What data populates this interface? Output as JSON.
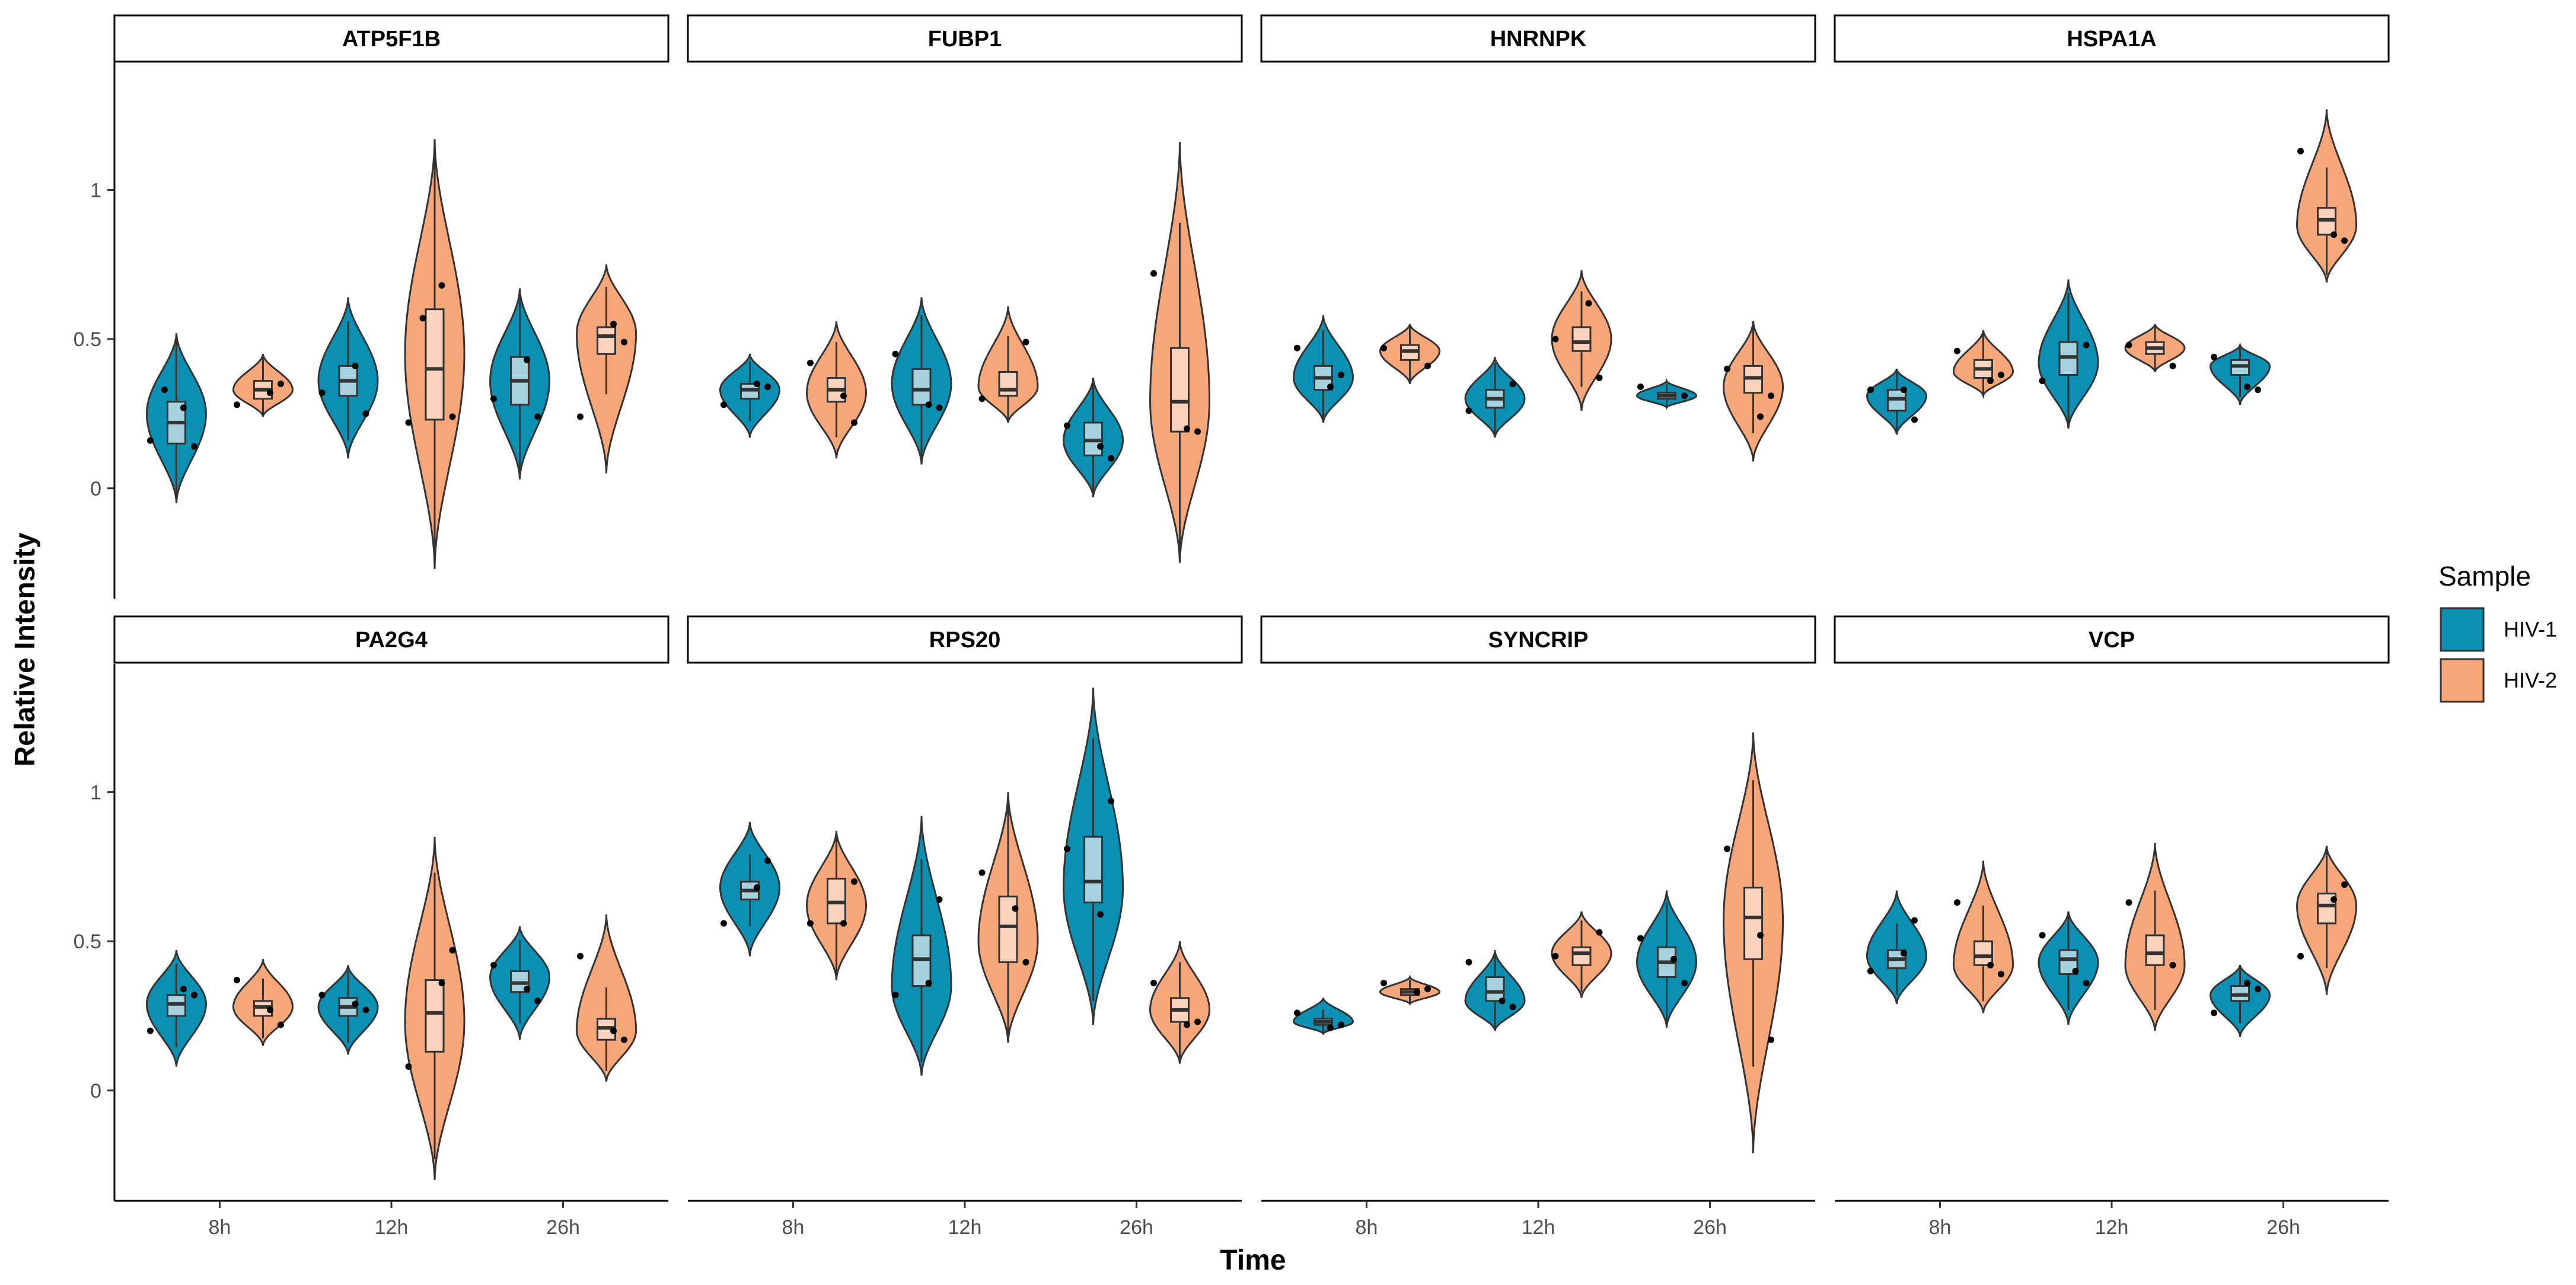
{
  "chart_data": {
    "type": "violin",
    "xlabel": "Time",
    "ylabel": "Relative Intensity",
    "x_categories": [
      "8h",
      "12h",
      "26h"
    ],
    "y_ticks": [
      0,
      0.5,
      1
    ],
    "y_tick_labels": [
      "0",
      "0.5",
      "1"
    ],
    "ylim": [
      -0.37,
      1.43
    ],
    "facet_layout": {
      "rows": 2,
      "cols": 4
    },
    "legend": {
      "title": "Sample",
      "position": "right",
      "entries": [
        {
          "name": "HIV-1",
          "fill": "#0b8fb2",
          "box_fill": "#a6d2df"
        },
        {
          "name": "HIV-2",
          "fill": "#f7a679",
          "box_fill": "#fbd3bc"
        }
      ]
    },
    "panels": [
      {
        "name": "ATP5F1B",
        "groups": [
          {
            "time": "8h",
            "sample": "HIV-1",
            "min": -0.05,
            "max": 0.52,
            "mode": 0.25,
            "q1": 0.15,
            "median": 0.22,
            "q3": 0.29,
            "points": [
              0.16,
              0.14,
              0.27,
              0.33
            ]
          },
          {
            "time": "8h",
            "sample": "HIV-2",
            "min": 0.24,
            "max": 0.45,
            "mode": 0.33,
            "q1": 0.3,
            "median": 0.33,
            "q3": 0.36,
            "points": [
              0.28,
              0.35,
              0.32
            ]
          },
          {
            "time": "12h",
            "sample": "HIV-1",
            "min": 0.1,
            "max": 0.64,
            "mode": 0.36,
            "q1": 0.31,
            "median": 0.36,
            "q3": 0.41,
            "points": [
              0.32,
              0.25,
              0.41
            ]
          },
          {
            "time": "12h",
            "sample": "HIV-2",
            "min": -0.27,
            "max": 1.17,
            "mode": 0.45,
            "q1": 0.23,
            "median": 0.4,
            "q3": 0.6,
            "points": [
              0.22,
              0.24,
              0.68,
              0.57
            ]
          },
          {
            "time": "26h",
            "sample": "HIV-1",
            "min": 0.03,
            "max": 0.67,
            "mode": 0.36,
            "q1": 0.28,
            "median": 0.36,
            "q3": 0.44,
            "points": [
              0.3,
              0.24,
              0.43
            ]
          },
          {
            "time": "26h",
            "sample": "HIV-2",
            "min": 0.05,
            "max": 0.75,
            "mode": 0.52,
            "q1": 0.45,
            "median": 0.51,
            "q3": 0.54,
            "points": [
              0.24,
              0.49,
              0.55
            ]
          }
        ]
      },
      {
        "name": "FUBP1",
        "groups": [
          {
            "time": "8h",
            "sample": "HIV-1",
            "min": 0.17,
            "max": 0.45,
            "mode": 0.33,
            "q1": 0.3,
            "median": 0.33,
            "q3": 0.35,
            "points": [
              0.28,
              0.34,
              0.35
            ]
          },
          {
            "time": "8h",
            "sample": "HIV-2",
            "min": 0.1,
            "max": 0.56,
            "mode": 0.32,
            "q1": 0.29,
            "median": 0.33,
            "q3": 0.37,
            "points": [
              0.42,
              0.22,
              0.31
            ]
          },
          {
            "time": "12h",
            "sample": "HIV-1",
            "min": 0.08,
            "max": 0.64,
            "mode": 0.35,
            "q1": 0.28,
            "median": 0.33,
            "q3": 0.4,
            "points": [
              0.45,
              0.27,
              0.28
            ]
          },
          {
            "time": "12h",
            "sample": "HIV-2",
            "min": 0.22,
            "max": 0.61,
            "mode": 0.34,
            "q1": 0.31,
            "median": 0.33,
            "q3": 0.39,
            "points": [
              0.3,
              0.49
            ]
          },
          {
            "time": "26h",
            "sample": "HIV-1",
            "min": -0.03,
            "max": 0.37,
            "mode": 0.16,
            "q1": 0.11,
            "median": 0.16,
            "q3": 0.22,
            "points": [
              0.21,
              0.1,
              0.14
            ]
          },
          {
            "time": "26h",
            "sample": "HIV-2",
            "min": -0.25,
            "max": 1.16,
            "mode": 0.29,
            "q1": 0.19,
            "median": 0.29,
            "q3": 0.47,
            "points": [
              0.72,
              0.19,
              0.2
            ]
          }
        ]
      },
      {
        "name": "HNRNPK",
        "groups": [
          {
            "time": "8h",
            "sample": "HIV-1",
            "min": 0.22,
            "max": 0.58,
            "mode": 0.37,
            "q1": 0.33,
            "median": 0.37,
            "q3": 0.41,
            "points": [
              0.47,
              0.38,
              0.34
            ]
          },
          {
            "time": "8h",
            "sample": "HIV-2",
            "min": 0.35,
            "max": 0.55,
            "mode": 0.46,
            "q1": 0.43,
            "median": 0.46,
            "q3": 0.48,
            "points": [
              0.47,
              0.41
            ]
          },
          {
            "time": "12h",
            "sample": "HIV-1",
            "min": 0.17,
            "max": 0.44,
            "mode": 0.3,
            "q1": 0.27,
            "median": 0.3,
            "q3": 0.33,
            "points": [
              0.26,
              0.35
            ]
          },
          {
            "time": "12h",
            "sample": "HIV-2",
            "min": 0.26,
            "max": 0.73,
            "mode": 0.5,
            "q1": 0.46,
            "median": 0.49,
            "q3": 0.54,
            "points": [
              0.5,
              0.37,
              0.62
            ]
          },
          {
            "time": "26h",
            "sample": "HIV-1",
            "min": 0.27,
            "max": 0.36,
            "mode": 0.31,
            "q1": 0.3,
            "median": 0.31,
            "q3": 0.32,
            "points": [
              0.34,
              0.31
            ]
          },
          {
            "time": "26h",
            "sample": "HIV-2",
            "min": 0.09,
            "max": 0.56,
            "mode": 0.34,
            "q1": 0.32,
            "median": 0.37,
            "q3": 0.41,
            "points": [
              0.4,
              0.31,
              0.24
            ]
          }
        ]
      },
      {
        "name": "HSPA1A",
        "groups": [
          {
            "time": "8h",
            "sample": "HIV-1",
            "min": 0.18,
            "max": 0.4,
            "mode": 0.31,
            "q1": 0.26,
            "median": 0.3,
            "q3": 0.33,
            "points": [
              0.33,
              0.23,
              0.33
            ]
          },
          {
            "time": "8h",
            "sample": "HIV-2",
            "min": 0.31,
            "max": 0.53,
            "mode": 0.39,
            "q1": 0.37,
            "median": 0.4,
            "q3": 0.43,
            "points": [
              0.46,
              0.38,
              0.36
            ]
          },
          {
            "time": "12h",
            "sample": "HIV-1",
            "min": 0.2,
            "max": 0.7,
            "mode": 0.42,
            "q1": 0.38,
            "median": 0.44,
            "q3": 0.49,
            "points": [
              0.36,
              0.48
            ]
          },
          {
            "time": "12h",
            "sample": "HIV-2",
            "min": 0.39,
            "max": 0.55,
            "mode": 0.47,
            "q1": 0.45,
            "median": 0.47,
            "q3": 0.49,
            "points": [
              0.48,
              0.41
            ]
          },
          {
            "time": "26h",
            "sample": "HIV-1",
            "min": 0.28,
            "max": 0.48,
            "mode": 0.41,
            "q1": 0.38,
            "median": 0.41,
            "q3": 0.43,
            "points": [
              0.44,
              0.33,
              0.34
            ]
          },
          {
            "time": "26h",
            "sample": "HIV-2",
            "min": 0.69,
            "max": 1.27,
            "mode": 0.88,
            "q1": 0.85,
            "median": 0.9,
            "q3": 0.94,
            "points": [
              1.13,
              0.83,
              0.85
            ]
          }
        ]
      },
      {
        "name": "PA2G4",
        "groups": [
          {
            "time": "8h",
            "sample": "HIV-1",
            "min": 0.08,
            "max": 0.47,
            "mode": 0.29,
            "q1": 0.25,
            "median": 0.29,
            "q3": 0.32,
            "points": [
              0.2,
              0.32,
              0.34
            ]
          },
          {
            "time": "8h",
            "sample": "HIV-2",
            "min": 0.15,
            "max": 0.44,
            "mode": 0.28,
            "q1": 0.25,
            "median": 0.28,
            "q3": 0.3,
            "points": [
              0.37,
              0.22,
              0.27
            ]
          },
          {
            "time": "12h",
            "sample": "HIV-1",
            "min": 0.12,
            "max": 0.42,
            "mode": 0.28,
            "q1": 0.25,
            "median": 0.28,
            "q3": 0.31,
            "points": [
              0.32,
              0.27,
              0.29
            ]
          },
          {
            "time": "12h",
            "sample": "HIV-2",
            "min": -0.3,
            "max": 0.85,
            "mode": 0.23,
            "q1": 0.13,
            "median": 0.26,
            "q3": 0.37,
            "points": [
              0.08,
              0.47,
              0.36
            ]
          },
          {
            "time": "26h",
            "sample": "HIV-1",
            "min": 0.17,
            "max": 0.55,
            "mode": 0.38,
            "q1": 0.33,
            "median": 0.36,
            "q3": 0.4,
            "points": [
              0.42,
              0.3,
              0.34
            ]
          },
          {
            "time": "26h",
            "sample": "HIV-2",
            "min": 0.03,
            "max": 0.59,
            "mode": 0.2,
            "q1": 0.17,
            "median": 0.21,
            "q3": 0.24,
            "points": [
              0.45,
              0.17,
              0.2
            ]
          }
        ]
      },
      {
        "name": "RPS20",
        "groups": [
          {
            "time": "8h",
            "sample": "HIV-1",
            "min": 0.45,
            "max": 0.9,
            "mode": 0.68,
            "q1": 0.64,
            "median": 0.67,
            "q3": 0.7,
            "points": [
              0.56,
              0.77,
              0.68
            ]
          },
          {
            "time": "8h",
            "sample": "HIV-2",
            "min": 0.37,
            "max": 0.87,
            "mode": 0.62,
            "q1": 0.56,
            "median": 0.63,
            "q3": 0.71,
            "points": [
              0.56,
              0.7,
              0.56
            ]
          },
          {
            "time": "12h",
            "sample": "HIV-1",
            "min": 0.05,
            "max": 0.92,
            "mode": 0.35,
            "q1": 0.35,
            "median": 0.44,
            "q3": 0.52,
            "points": [
              0.32,
              0.64,
              0.36
            ]
          },
          {
            "time": "12h",
            "sample": "HIV-2",
            "min": 0.16,
            "max": 1.0,
            "mode": 0.5,
            "q1": 0.43,
            "median": 0.55,
            "q3": 0.65,
            "points": [
              0.73,
              0.43,
              0.61
            ]
          },
          {
            "time": "26h",
            "sample": "HIV-1",
            "min": 0.22,
            "max": 1.35,
            "mode": 0.68,
            "q1": 0.63,
            "median": 0.7,
            "q3": 0.85,
            "points": [
              0.81,
              0.97,
              0.59
            ]
          },
          {
            "time": "26h",
            "sample": "HIV-2",
            "min": 0.09,
            "max": 0.5,
            "mode": 0.27,
            "q1": 0.23,
            "median": 0.27,
            "q3": 0.31,
            "points": [
              0.36,
              0.23,
              0.22
            ]
          }
        ]
      },
      {
        "name": "SYNCRIP",
        "groups": [
          {
            "time": "8h",
            "sample": "HIV-1",
            "min": 0.19,
            "max": 0.31,
            "mode": 0.23,
            "q1": 0.22,
            "median": 0.23,
            "q3": 0.24,
            "points": [
              0.26,
              0.22,
              0.21
            ]
          },
          {
            "time": "8h",
            "sample": "HIV-2",
            "min": 0.29,
            "max": 0.38,
            "mode": 0.33,
            "q1": 0.32,
            "median": 0.33,
            "q3": 0.34,
            "points": [
              0.36,
              0.34,
              0.33
            ]
          },
          {
            "time": "12h",
            "sample": "HIV-1",
            "min": 0.2,
            "max": 0.47,
            "mode": 0.3,
            "q1": 0.3,
            "median": 0.33,
            "q3": 0.38,
            "points": [
              0.43,
              0.28,
              0.3
            ]
          },
          {
            "time": "12h",
            "sample": "HIV-2",
            "min": 0.31,
            "max": 0.6,
            "mode": 0.46,
            "q1": 0.42,
            "median": 0.46,
            "q3": 0.48,
            "points": [
              0.45,
              0.53
            ]
          },
          {
            "time": "26h",
            "sample": "HIV-1",
            "min": 0.21,
            "max": 0.67,
            "mode": 0.43,
            "q1": 0.38,
            "median": 0.43,
            "q3": 0.48,
            "points": [
              0.51,
              0.36,
              0.44
            ]
          },
          {
            "time": "26h",
            "sample": "HIV-2",
            "min": -0.21,
            "max": 1.2,
            "mode": 0.57,
            "q1": 0.44,
            "median": 0.58,
            "q3": 0.68,
            "points": [
              0.81,
              0.17,
              0.52
            ]
          }
        ]
      },
      {
        "name": "VCP",
        "groups": [
          {
            "time": "8h",
            "sample": "HIV-1",
            "min": 0.29,
            "max": 0.67,
            "mode": 0.45,
            "q1": 0.41,
            "median": 0.44,
            "q3": 0.47,
            "points": [
              0.4,
              0.57,
              0.46
            ]
          },
          {
            "time": "8h",
            "sample": "HIV-2",
            "min": 0.26,
            "max": 0.77,
            "mode": 0.42,
            "q1": 0.42,
            "median": 0.45,
            "q3": 0.5,
            "points": [
              0.63,
              0.39,
              0.42
            ]
          },
          {
            "time": "12h",
            "sample": "HIV-1",
            "min": 0.22,
            "max": 0.6,
            "mode": 0.43,
            "q1": 0.39,
            "median": 0.44,
            "q3": 0.47,
            "points": [
              0.52,
              0.36,
              0.4
            ]
          },
          {
            "time": "12h",
            "sample": "HIV-2",
            "min": 0.2,
            "max": 0.83,
            "mode": 0.42,
            "q1": 0.42,
            "median": 0.46,
            "q3": 0.52,
            "points": [
              0.63,
              0.42
            ]
          },
          {
            "time": "26h",
            "sample": "HIV-1",
            "min": 0.18,
            "max": 0.42,
            "mode": 0.32,
            "q1": 0.3,
            "median": 0.32,
            "q3": 0.35,
            "points": [
              0.26,
              0.34,
              0.36
            ]
          },
          {
            "time": "26h",
            "sample": "HIV-2",
            "min": 0.32,
            "max": 0.82,
            "mode": 0.62,
            "q1": 0.56,
            "median": 0.62,
            "q3": 0.66,
            "points": [
              0.45,
              0.69,
              0.64
            ]
          }
        ]
      }
    ]
  }
}
